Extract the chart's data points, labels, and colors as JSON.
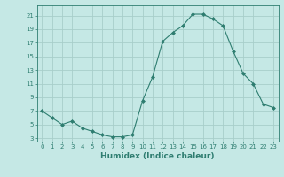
{
  "x": [
    0,
    1,
    2,
    3,
    4,
    5,
    6,
    7,
    8,
    9,
    10,
    11,
    12,
    13,
    14,
    15,
    16,
    17,
    18,
    19,
    20,
    21,
    22,
    23
  ],
  "y": [
    7,
    6,
    5,
    5.5,
    4.5,
    4,
    3.5,
    3.2,
    3.2,
    3.5,
    8.5,
    12,
    17.2,
    18.5,
    19.5,
    21.2,
    21.2,
    20.5,
    19.5,
    15.8,
    12.5,
    11,
    8,
    7.5
  ],
  "line_color": "#2e7d70",
  "marker": "D",
  "marker_size": 2.0,
  "bg_color": "#c5e8e5",
  "grid_color": "#a8ceca",
  "xlabel": "Humidex (Indice chaleur)",
  "xlabel_fontsize": 6.5,
  "ytick_values": [
    3,
    5,
    7,
    9,
    11,
    13,
    15,
    17,
    19,
    21
  ],
  "xtick_values": [
    0,
    1,
    2,
    3,
    4,
    5,
    6,
    7,
    8,
    9,
    10,
    11,
    12,
    13,
    14,
    15,
    16,
    17,
    18,
    19,
    20,
    21,
    22,
    23
  ],
  "ylim": [
    2.5,
    22.5
  ],
  "xlim": [
    -0.5,
    23.5
  ],
  "tick_fontsize": 5.0,
  "linewidth": 0.8
}
